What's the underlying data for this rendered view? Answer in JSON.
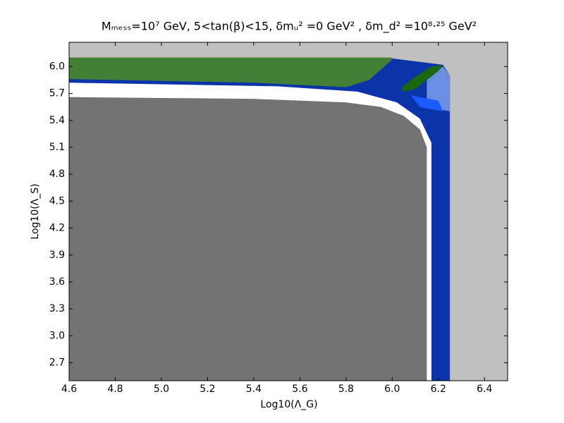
{
  "chart_data": {
    "type": "region",
    "title": "Mₘₑₛₛ=10⁷  GeV, 5<tan(β)<15, δmᵤ² =0 GeV² , δm_d² =10⁸·²⁵ GeV²",
    "x_label": "Log10(Λ_G)",
    "y_label": "Log10(Λ_S)",
    "xlim": [
      4.6,
      6.5
    ],
    "ylim": [
      2.5,
      6.27
    ],
    "xticks": [
      4.6,
      4.8,
      {
        "value": 5,
        "label": "5.0"
      },
      5.2,
      5.4,
      5.6,
      5.8,
      {
        "value": 6,
        "label": "6.0"
      },
      6.2,
      6.4
    ],
    "yticks": [
      2.7,
      {
        "value": 3,
        "label": "3.0"
      },
      3.3,
      3.6,
      3.9,
      4.2,
      4.5,
      4.8,
      5.1,
      5.4,
      5.7,
      {
        "value": 6,
        "label": "6.0"
      }
    ],
    "background": "#c0c0c0",
    "series": [
      {
        "color": "#0a34a8",
        "x": [
          4.6,
          6.25,
          6.25,
          6.22,
          6.0,
          4.6
        ],
        "values": [
          2.5,
          2.5,
          5.9,
          6.02,
          6.09,
          6.09
        ]
      },
      {
        "color": "#6b8ee0",
        "x": [
          6.15,
          6.25,
          6.25,
          6.22,
          6.15
        ],
        "values": [
          5.55,
          5.5,
          5.9,
          6.0,
          5.85
        ]
      },
      {
        "color": "#1a5cff",
        "x": [
          6.08,
          6.2,
          6.22,
          6.12
        ],
        "values": [
          5.68,
          5.62,
          5.5,
          5.55
        ]
      },
      {
        "color": "#437f37",
        "x": [
          4.6,
          5.4,
          5.8,
          5.9,
          6.0,
          6.0,
          4.6
        ],
        "values": [
          5.86,
          5.82,
          5.77,
          5.85,
          6.08,
          6.1,
          6.1
        ]
      },
      {
        "color": "#17680f",
        "x": [
          6.05,
          6.1,
          6.2,
          6.22,
          6.17,
          6.08,
          6.04
        ],
        "values": [
          5.72,
          5.75,
          5.95,
          6.02,
          6.0,
          5.85,
          5.76
        ]
      },
      {
        "color": "#ffffff",
        "x": [
          4.6,
          6.17,
          6.17,
          6.12,
          6.02,
          5.85,
          5.5,
          4.6
        ],
        "values": [
          2.5,
          2.5,
          5.15,
          5.42,
          5.6,
          5.72,
          5.78,
          5.82
        ]
      },
      {
        "color": "#737373",
        "x": [
          4.6,
          6.15,
          6.15,
          6.12,
          6.05,
          5.95,
          5.8,
          5.4,
          4.6
        ],
        "values": [
          2.5,
          2.5,
          5.1,
          5.3,
          5.45,
          5.55,
          5.6,
          5.64,
          5.66
        ]
      }
    ]
  }
}
